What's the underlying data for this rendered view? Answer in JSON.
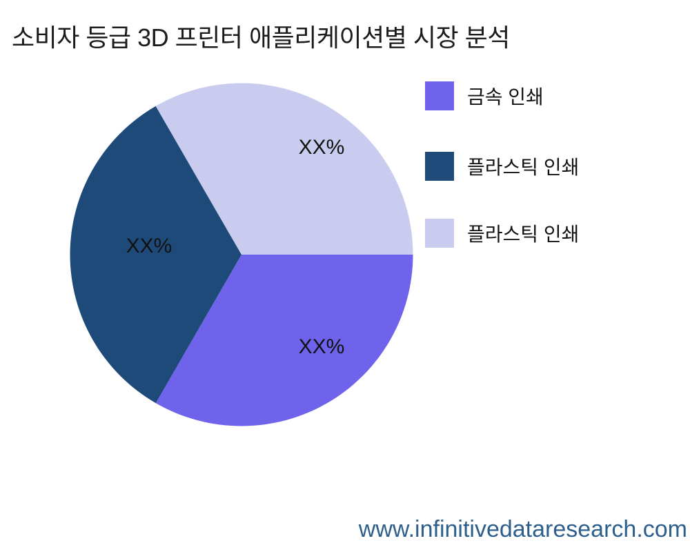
{
  "page": {
    "background_color": "#ffffff",
    "title_color": "#1b1b1b"
  },
  "chart_data": {
    "type": "pie",
    "title": "소비자 등급 3D 프린터 애플리케이션별 시장 분석",
    "start_angle_deg": 0,
    "direction": "clockwise",
    "legend_position": "right",
    "labels_inside": true,
    "slices": [
      {
        "label": "금속 인쇄",
        "value": 33.33,
        "display_pct": "XX%",
        "color": "#7063EB"
      },
      {
        "label": "플라스틱 인쇄",
        "value": 33.33,
        "display_pct": "XX%",
        "color": "#1E4A7A"
      },
      {
        "label": "플라스틱 인쇄",
        "value": 33.34,
        "display_pct": "XX%",
        "color": "#C9CCEE"
      }
    ]
  },
  "footer": {
    "url": "www.infinitivedataresearch.com",
    "url_color": "#2E5F8C"
  }
}
